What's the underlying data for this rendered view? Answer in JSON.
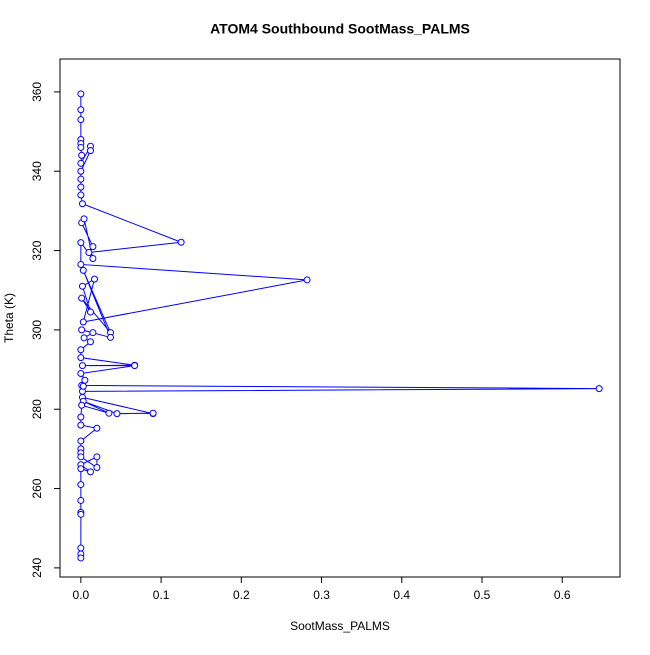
{
  "chart_data": {
    "type": "line",
    "markers": true,
    "title": "ATOM4 Southbound SootMass_PALMS",
    "x_label": "SootMass_PALMS",
    "y_label": "Theta (K)",
    "color": "#0000ff",
    "x": [
      0,
      0,
      0,
      0,
      0,
      0,
      0.001,
      0,
      0.012,
      0.012,
      0,
      0,
      0,
      0,
      0.002,
      0.125,
      0.01,
      0.015,
      0.001,
      0.004,
      0.015,
      0,
      0,
      0.282,
      0.003,
      0.017,
      0.002,
      0.012,
      0.001,
      0.037,
      0.003,
      0.037,
      0.001,
      0.015,
      0.004,
      0.012,
      0,
      0,
      0.067,
      0.002,
      0.067,
      0,
      0.005,
      0.001,
      0.646,
      0.002,
      0.003,
      0.002,
      0.09,
      0.09,
      0.045,
      0.003,
      0.035,
      0.001,
      0,
      0,
      0.02,
      0,
      0,
      0,
      0,
      0.02,
      0.02,
      0,
      0.012,
      0,
      0,
      0,
      0,
      0,
      0,
      0,
      0
    ],
    "values": [
      359.5,
      355.5,
      353,
      348,
      347,
      346,
      344,
      342,
      346.3,
      345.2,
      340,
      338,
      336,
      334,
      331.8,
      322.1,
      319.5,
      321,
      327,
      328,
      318,
      322,
      316.5,
      312.6,
      302,
      312.8,
      311,
      304.5,
      308,
      299.3,
      315,
      298.1,
      300,
      299.3,
      298,
      297,
      295,
      293,
      291.1,
      291,
      291,
      289,
      287.3,
      286,
      285.2,
      284.5,
      285.8,
      283,
      278.9,
      279,
      278.9,
      282,
      279,
      281,
      278,
      276,
      275.2,
      272,
      270,
      269,
      268,
      265.3,
      268,
      266,
      264.2,
      265,
      261,
      257,
      254,
      253.5,
      245,
      243.5,
      242.5
    ],
    "xlim": [
      -0.026,
      0.672
    ],
    "ylim": [
      237.7,
      368.3
    ],
    "xticks": [
      {
        "value": 0,
        "label": "0.0"
      },
      {
        "value": 0.1,
        "label": "0.1"
      },
      {
        "value": 0.2,
        "label": "0.2"
      },
      {
        "value": 0.3,
        "label": "0.3"
      },
      {
        "value": 0.4,
        "label": "0.4"
      },
      {
        "value": 0.5,
        "label": "0.5"
      },
      {
        "value": 0.6,
        "label": "0.6"
      }
    ],
    "yticks": [
      240,
      260,
      280,
      300,
      320,
      340,
      360
    ]
  }
}
